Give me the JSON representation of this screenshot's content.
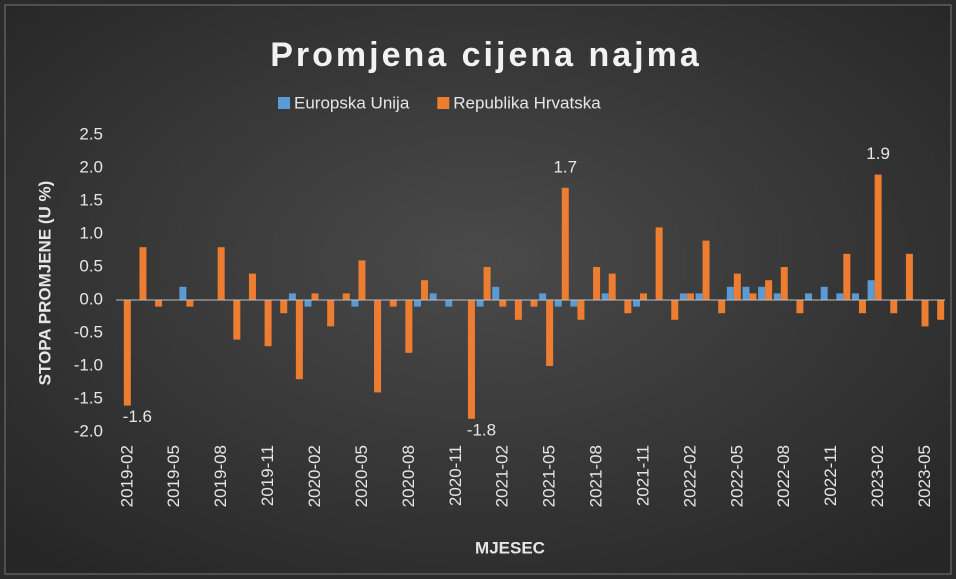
{
  "chart_data": {
    "type": "bar",
    "title": "Promjena cijena najma",
    "x_label": "MJESEC",
    "y_label": "STOPA PROMJENE (U %)",
    "categories": [
      "2019-02",
      null,
      null,
      "2019-05",
      null,
      null,
      "2019-08",
      null,
      null,
      "2019-11",
      null,
      null,
      "2020-02",
      null,
      null,
      "2020-05",
      null,
      null,
      "2020-08",
      null,
      null,
      "2020-11",
      null,
      null,
      "2021-02",
      null,
      null,
      "2021-05",
      null,
      null,
      "2021-08",
      null,
      null,
      "2021-11",
      null,
      null,
      "2022-02",
      null,
      null,
      "2022-05",
      null,
      null,
      "2022-08",
      null,
      null,
      "2022-11",
      null,
      null,
      "2023-02",
      null,
      null,
      "2023-05",
      null
    ],
    "series": [
      {
        "name": "Europska Unija",
        "color": "#5b9bd5",
        "values": [
          0,
          0,
          0,
          0,
          0.2,
          0,
          0,
          0,
          0,
          0,
          0,
          0.1,
          -0.1,
          0,
          0,
          -0.1,
          0,
          0,
          0,
          -0.1,
          0.1,
          -0.1,
          0,
          -0.1,
          0.2,
          0,
          0,
          0.1,
          -0.1,
          -0.1,
          0,
          0.1,
          0,
          -0.1,
          0,
          0,
          0.1,
          0.1,
          0,
          0.2,
          0.2,
          0.2,
          0.1,
          0,
          0.1,
          0.2,
          0.1,
          0.1,
          0.3,
          0,
          0,
          0,
          0
        ]
      },
      {
        "name": "Republika Hrvatska",
        "color": "#ed7d31",
        "values": [
          -1.6,
          0.8,
          -0.1,
          0,
          -0.1,
          0,
          0.8,
          -0.6,
          0.4,
          -0.7,
          -0.2,
          -1.2,
          0.1,
          -0.4,
          0.1,
          0.6,
          -1.4,
          -0.1,
          -0.8,
          0.3,
          0,
          0,
          -1.8,
          0.5,
          -0.1,
          -0.3,
          -0.1,
          -1.0,
          1.7,
          -0.3,
          0.5,
          0.4,
          -0.2,
          0.1,
          1.1,
          -0.3,
          0.1,
          0.9,
          -0.2,
          0.4,
          0.1,
          0.3,
          0.5,
          -0.2,
          0,
          0,
          0.7,
          -0.2,
          1.9,
          -0.2,
          0.7,
          -0.4,
          -0.3
        ],
        "value_labels": [
          "-1.6",
          null,
          null,
          null,
          null,
          null,
          null,
          null,
          null,
          null,
          null,
          null,
          null,
          null,
          null,
          null,
          null,
          null,
          null,
          null,
          null,
          null,
          "-1.8",
          null,
          null,
          null,
          null,
          null,
          "1.7",
          null,
          null,
          null,
          null,
          null,
          null,
          null,
          null,
          null,
          null,
          null,
          null,
          null,
          null,
          null,
          null,
          null,
          null,
          null,
          "1.9",
          null,
          null,
          null,
          null
        ]
      }
    ],
    "ylim": [
      -2.0,
      2.5
    ],
    "yticks": [
      2.5,
      {
        "value": 2.0,
        "label": "2.0"
      },
      1.5,
      {
        "value": 1.0,
        "label": "1.0"
      },
      0.5,
      {
        "value": 0,
        "label": "0.0"
      },
      -0.5,
      {
        "value": -1.0,
        "label": "-1.0"
      },
      -1.5,
      {
        "value": -2.0,
        "label": "-2.0"
      }
    ],
    "grid": false,
    "legend": "top"
  }
}
